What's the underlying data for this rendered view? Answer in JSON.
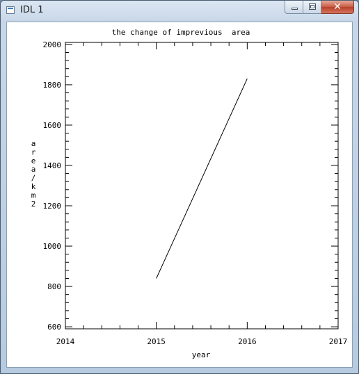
{
  "window": {
    "title": "IDL 1",
    "controls": {
      "close_glyph": "✕"
    },
    "icons": [
      "window-app-icon",
      "minimize-icon",
      "maximize-icon",
      "close-icon"
    ]
  },
  "chart_data": {
    "type": "line",
    "title": "the change of imprevious  area",
    "xlabel": "year",
    "ylabel": [
      "a",
      "r",
      "e",
      "a",
      "/",
      "k",
      "m",
      "2"
    ],
    "xlim": [
      2014,
      2017
    ],
    "ylim": [
      590,
      2010
    ],
    "xticks": [
      "2014",
      "2015",
      "2016",
      "2017"
    ],
    "yticks": [
      "600",
      "800",
      "1000",
      "1200",
      "1400",
      "1600",
      "1800",
      "2000"
    ],
    "grid": false,
    "series": [
      {
        "x": [
          2015,
          2016
        ],
        "y": [
          840,
          1830
        ]
      }
    ]
  }
}
